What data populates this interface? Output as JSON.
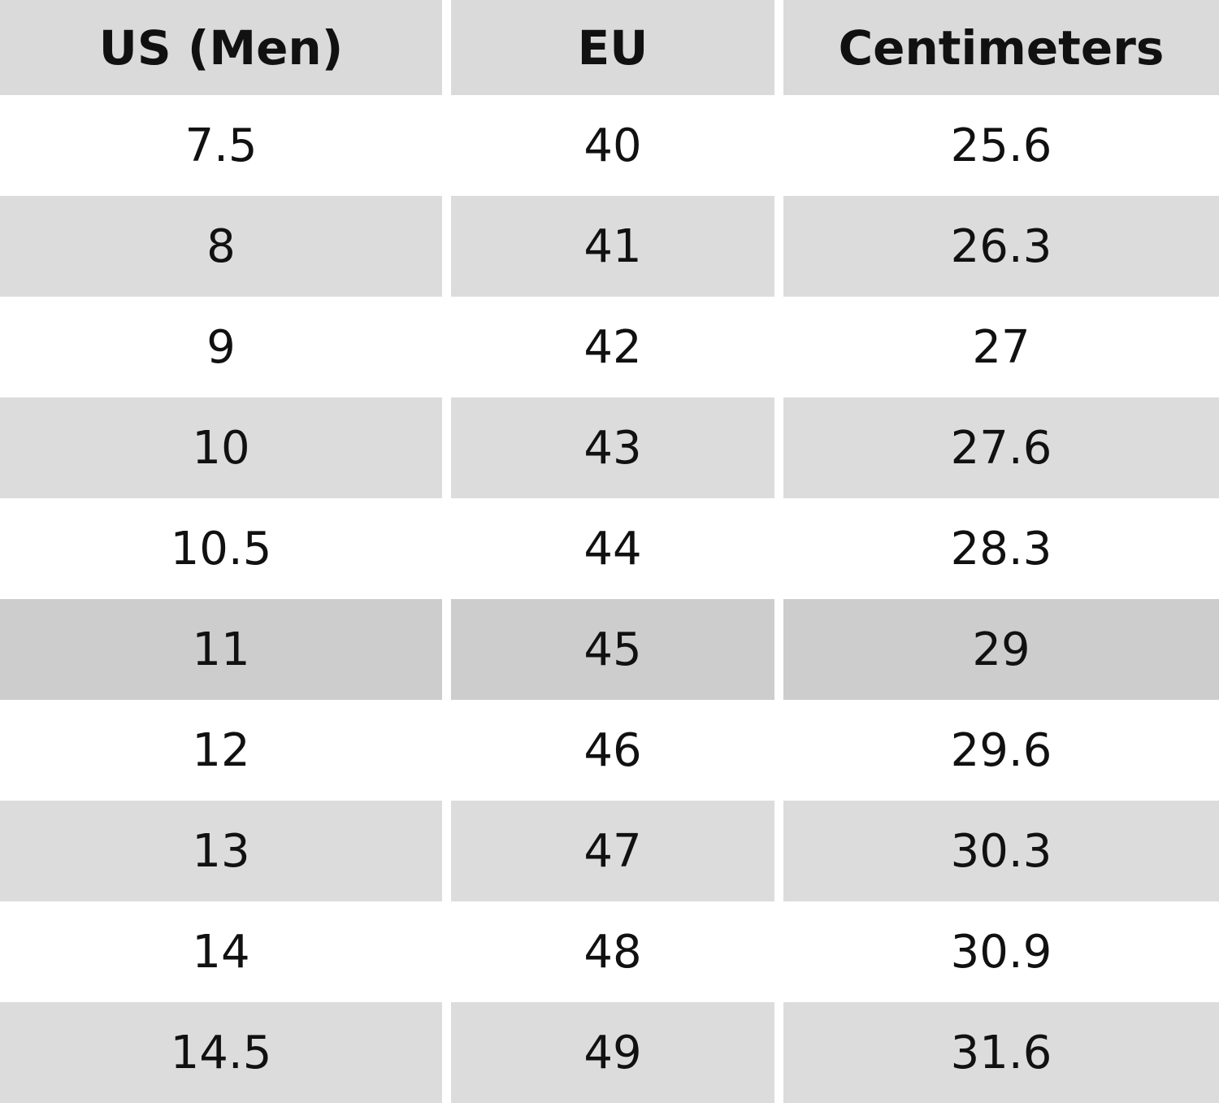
{
  "table": {
    "header": [
      "US (Men)",
      "EU",
      "Centimeters"
    ],
    "rows": [
      [
        "7.5",
        "40",
        "25.6"
      ],
      [
        "8",
        "41",
        "26.3"
      ],
      [
        "9",
        "42",
        "27"
      ],
      [
        "10",
        "43",
        "27.6"
      ],
      [
        "10.5",
        "44",
        "28.3"
      ],
      [
        "11",
        "45",
        "29"
      ],
      [
        "12",
        "46",
        "29.6"
      ],
      [
        "13",
        "47",
        "30.3"
      ],
      [
        "14",
        "48",
        "30.9"
      ],
      [
        "14.5",
        "49",
        "31.6"
      ]
    ]
  }
}
